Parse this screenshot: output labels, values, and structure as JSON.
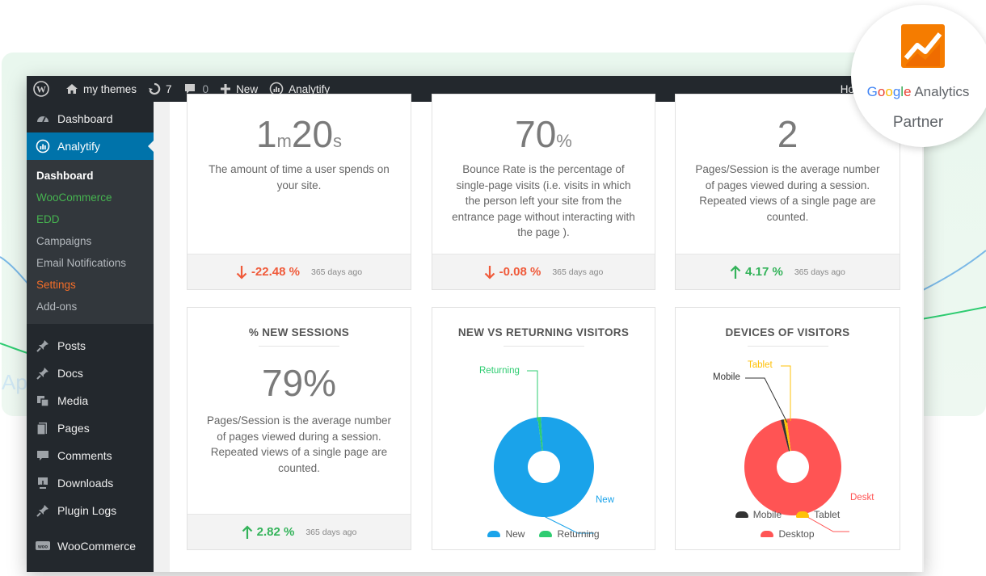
{
  "admin_bar": {
    "site_name": "my themes",
    "updates_count": "7",
    "comments_count": "0",
    "new_label": "New",
    "plugin_label": "Analytify",
    "howdy_label": "Howdy"
  },
  "sidebar": {
    "dashboard": "Dashboard",
    "analytify": "Analytify",
    "submenu": [
      "Dashboard",
      "WooCommerce",
      "EDD",
      "Campaigns",
      "Email Notifications",
      "Settings",
      "Add-ons"
    ],
    "items": [
      "Posts",
      "Docs",
      "Media",
      "Pages",
      "Comments",
      "Downloads",
      "Plugin Logs"
    ],
    "woocommerce": "WooCommerce"
  },
  "cards": {
    "session_duration": {
      "value_m": "1",
      "unit_m": "m",
      "value_s": "20",
      "unit_s": "s",
      "desc": "The amount of time a user spends on your site.",
      "change": "-22.48 %",
      "direction": "down",
      "period": "365 days ago"
    },
    "bounce_rate": {
      "value": "70",
      "unit": "%",
      "desc": "Bounce Rate is the percentage of single-page visits (i.e. visits in which the person left your site from the entrance page without interacting with the page ).",
      "change": "-0.08 %",
      "direction": "down",
      "period": "365 days ago"
    },
    "pages_session": {
      "value": "2",
      "desc": "Pages/Session is the average number of pages viewed during a session. Repeated views of a single page are counted.",
      "change": "4.17 %",
      "direction": "up",
      "period": "365 days ago"
    },
    "new_sessions": {
      "title": "% NEW SESSIONS",
      "value": "79%",
      "desc": "Pages/Session is the average number of pages viewed during a session. Repeated views of a single page are counted.",
      "change": "2.82 %",
      "direction": "up",
      "period": "365 days ago"
    },
    "new_vs_returning": {
      "title": "NEW VS RETURNING VISITORS",
      "label_returning": "Returning",
      "label_new": "New",
      "legend": [
        "New",
        "Returning"
      ]
    },
    "devices": {
      "title": "DEVICES OF VISITORS",
      "label_tablet": "Tablet",
      "label_mobile": "Mobile",
      "label_desktop": "Deskt",
      "legend": [
        "Mobile",
        "Tablet",
        "Desktop"
      ]
    }
  },
  "chart_data": [
    {
      "type": "pie",
      "title": "NEW VS RETURNING VISITORS",
      "categories": [
        "New",
        "Returning"
      ],
      "values": [
        99,
        1
      ],
      "colors": [
        "#1aa3ea",
        "#2ecc71"
      ],
      "legend": "bottom"
    },
    {
      "type": "pie",
      "title": "DEVICES OF VISITORS",
      "categories": [
        "Desktop",
        "Mobile",
        "Tablet"
      ],
      "values": [
        98,
        1,
        1
      ],
      "colors": [
        "#ff5454",
        "#333333",
        "#ffc107"
      ],
      "legend": "bottom"
    }
  ],
  "badge": {
    "google": [
      "G",
      "o",
      "o",
      "g",
      "l",
      "e"
    ],
    "analytics": "Analytics",
    "partner": "Partner"
  },
  "background": {
    "text": "Ap"
  },
  "colors": {
    "admin_bar": "#23282d",
    "accent": "#0073aa",
    "down": "#f05a3a",
    "up": "#34b35a",
    "new": "#1aa3ea",
    "returning": "#2ecc71",
    "desktop": "#ff5454",
    "tablet": "#ffc107",
    "mobile": "#333333"
  }
}
